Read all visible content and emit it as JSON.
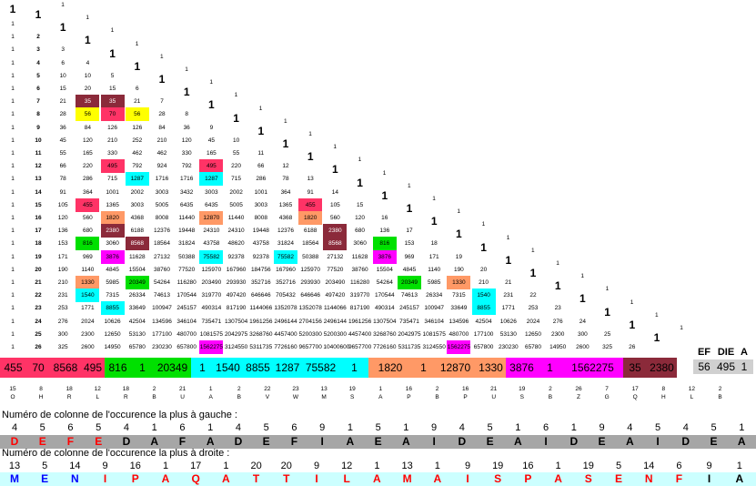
{
  "triangle": {
    "rows": [
      [
        1
      ],
      [
        1,
        1
      ],
      [
        1,
        2,
        1
      ],
      [
        1,
        3,
        3,
        1
      ],
      [
        1,
        4,
        6,
        4,
        1
      ],
      [
        1,
        5,
        10,
        10,
        5,
        1
      ],
      [
        1,
        6,
        15,
        20,
        15,
        6,
        1
      ],
      [
        1,
        7,
        21,
        35,
        35,
        21,
        7,
        1
      ],
      [
        1,
        8,
        28,
        56,
        70,
        56,
        28,
        8,
        1
      ],
      [
        1,
        9,
        36,
        84,
        126,
        126,
        84,
        36,
        9,
        1
      ],
      [
        1,
        10,
        45,
        120,
        210,
        252,
        210,
        120,
        45,
        10,
        1
      ],
      [
        1,
        11,
        55,
        165,
        330,
        462,
        462,
        330,
        165,
        55,
        11,
        1
      ],
      [
        1,
        12,
        66,
        220,
        495,
        792,
        924,
        792,
        495,
        220,
        66,
        12,
        1
      ],
      [
        1,
        13,
        78,
        286,
        715,
        1287,
        1716,
        1716,
        1287,
        715,
        286,
        78,
        13,
        1
      ],
      [
        1,
        14,
        91,
        364,
        1001,
        2002,
        3003,
        3432,
        3003,
        2002,
        1001,
        364,
        91,
        14,
        1
      ],
      [
        1,
        15,
        105,
        455,
        1365,
        3003,
        5005,
        6435,
        6435,
        5005,
        3003,
        1365,
        455,
        105,
        15,
        1
      ],
      [
        1,
        16,
        120,
        560,
        1820,
        4368,
        8008,
        11440,
        12870,
        11440,
        8008,
        4368,
        1820,
        560,
        120,
        16,
        1
      ],
      [
        1,
        17,
        136,
        680,
        2380,
        6188,
        12376,
        19448,
        24310,
        24310,
        19448,
        12376,
        6188,
        2380,
        680,
        136,
        17,
        1
      ],
      [
        1,
        18,
        153,
        816,
        3060,
        8568,
        18564,
        31824,
        43758,
        48620,
        43758,
        31824,
        18564,
        8568,
        3060,
        816,
        153,
        18,
        1
      ],
      [
        1,
        19,
        171,
        969,
        3876,
        11628,
        27132,
        50388,
        75582,
        92378,
        92378,
        75582,
        50388,
        27132,
        11628,
        3876,
        969,
        171,
        19,
        1
      ],
      [
        1,
        20,
        190,
        1140,
        4845,
        15504,
        38760,
        77520,
        125970,
        167960,
        184756,
        167960,
        125970,
        77520,
        38760,
        15504,
        4845,
        1140,
        190,
        20,
        1
      ],
      [
        1,
        21,
        210,
        1330,
        5985,
        20349,
        54264,
        116280,
        203490,
        293930,
        352716,
        352716,
        293930,
        203490,
        116280,
        54264,
        20349,
        5985,
        1330,
        210,
        21,
        1
      ],
      [
        1,
        22,
        231,
        1540,
        7315,
        26334,
        74613,
        170544,
        319770,
        497420,
        646646,
        705432,
        646646,
        497420,
        319770,
        170544,
        74613,
        26334,
        7315,
        1540,
        231,
        22,
        1
      ],
      [
        1,
        23,
        253,
        1771,
        8855,
        33649,
        100947,
        245157,
        490314,
        817190,
        1144066,
        1352078,
        1352078,
        1144066,
        817190,
        490314,
        245157,
        100947,
        33649,
        8855,
        1771,
        253,
        23,
        1
      ],
      [
        1,
        24,
        276,
        2024,
        10626,
        42504,
        134596,
        346104,
        735471,
        1307504,
        1961256,
        2496144,
        2704156,
        2496144,
        1961256,
        1307504,
        735471,
        346104,
        134596,
        42504,
        10626,
        2024,
        276,
        24,
        1
      ],
      [
        1,
        25,
        300,
        2300,
        12650,
        53130,
        177100,
        480700,
        1081575,
        2042975,
        3268760,
        4457400,
        5200300,
        5200300,
        4457400,
        3268760,
        2042975,
        1081575,
        480700,
        177100,
        53130,
        12650,
        2300,
        300,
        25,
        1
      ],
      [
        1,
        26,
        325,
        2600,
        14950,
        65780,
        230230,
        657800,
        1562275,
        3124550,
        5311735,
        7726160,
        9657700,
        10400600,
        9657700,
        7726160,
        5311735,
        3124550,
        1562275,
        657800,
        230230,
        65780,
        14950,
        2600,
        325,
        26,
        1
      ]
    ],
    "highlights": [
      {
        "r": 7,
        "c": 3,
        "color": "#8b2a3a",
        "text": "#ffffff"
      },
      {
        "r": 7,
        "c": 4,
        "color": "#8b2a3a",
        "text": "#ffffff"
      },
      {
        "r": 8,
        "c": 3,
        "color": "#ffff00"
      },
      {
        "r": 8,
        "c": 4,
        "color": "#ff3366"
      },
      {
        "r": 8,
        "c": 5,
        "color": "#ffff00"
      },
      {
        "r": 12,
        "c": 4,
        "color": "#ff3366"
      },
      {
        "r": 12,
        "c": 8,
        "color": "#ff3366"
      },
      {
        "r": 13,
        "c": 5,
        "color": "#00ffff"
      },
      {
        "r": 13,
        "c": 8,
        "color": "#00ffff"
      },
      {
        "r": 15,
        "c": 3,
        "color": "#ff3366"
      },
      {
        "r": 15,
        "c": 12,
        "color": "#ff3366"
      },
      {
        "r": 16,
        "c": 4,
        "color": "#ff9966"
      },
      {
        "r": 16,
        "c": 8,
        "color": "#ff9966"
      },
      {
        "r": 16,
        "c": 12,
        "color": "#ff9966"
      },
      {
        "r": 17,
        "c": 4,
        "color": "#8b2a3a",
        "text": "#ffffff"
      },
      {
        "r": 17,
        "c": 13,
        "color": "#8b2a3a",
        "text": "#ffffff"
      },
      {
        "r": 18,
        "c": 3,
        "color": "#00e000"
      },
      {
        "r": 18,
        "c": 5,
        "color": "#8b2a3a",
        "text": "#ffffff"
      },
      {
        "r": 18,
        "c": 13,
        "color": "#8b2a3a",
        "text": "#ffffff"
      },
      {
        "r": 18,
        "c": 15,
        "color": "#00e000"
      },
      {
        "r": 19,
        "c": 4,
        "color": "#ff00ff"
      },
      {
        "r": 19,
        "c": 8,
        "color": "#00ffff"
      },
      {
        "r": 19,
        "c": 11,
        "color": "#00ffff"
      },
      {
        "r": 19,
        "c": 15,
        "color": "#ff00ff"
      },
      {
        "r": 21,
        "c": 3,
        "color": "#ff9966"
      },
      {
        "r": 21,
        "c": 5,
        "color": "#00e000"
      },
      {
        "r": 21,
        "c": 16,
        "color": "#00e000"
      },
      {
        "r": 21,
        "c": 18,
        "color": "#ff9966"
      },
      {
        "r": 22,
        "c": 3,
        "color": "#00ffff"
      },
      {
        "r": 22,
        "c": 19,
        "color": "#00ffff"
      },
      {
        "r": 23,
        "c": 4,
        "color": "#00ffff"
      },
      {
        "r": 23,
        "c": 19,
        "color": "#00ffff"
      },
      {
        "r": 26,
        "c": 8,
        "color": "#ff00ff"
      },
      {
        "r": 26,
        "c": 18,
        "color": "#ff00ff"
      }
    ]
  },
  "band": {
    "segments": [
      {
        "v": "455",
        "color": "#ff3366"
      },
      {
        "v": "70",
        "color": "#ff3366"
      },
      {
        "v": "8568",
        "color": "#ff3366"
      },
      {
        "v": "495",
        "color": "#ff3366"
      },
      {
        "v": "816",
        "color": "#00e000"
      },
      {
        "v": "1",
        "color": "#00e000"
      },
      {
        "v": "20349",
        "color": "#00e000"
      },
      {
        "v": "1",
        "color": "#00ffff"
      },
      {
        "v": "1540",
        "color": "#00ffff"
      },
      {
        "v": "8855",
        "color": "#00ffff"
      },
      {
        "v": "1287",
        "color": "#00ffff"
      },
      {
        "v": "75582",
        "color": "#00ffff"
      },
      {
        "v": "1",
        "color": "#00ffff"
      },
      {
        "v": "1820",
        "color": "#ff9966"
      },
      {
        "v": "1",
        "color": "#ff9966"
      },
      {
        "v": "12870",
        "color": "#ff9966"
      },
      {
        "v": "1330",
        "color": "#ff9966"
      },
      {
        "v": "3876",
        "color": "#ff00ff"
      },
      {
        "v": "1",
        "color": "#ff00ff"
      },
      {
        "v": "1562275",
        "color": "#ff00ff"
      },
      {
        "v": "35",
        "color": "#8b2a3a"
      },
      {
        "v": "2380",
        "color": "#8b2a3a"
      }
    ],
    "ef_headers": [
      "EF",
      "DIE",
      "A"
    ],
    "ef_values": [
      "56",
      "495",
      "1"
    ]
  },
  "keys": {
    "numbers": [
      "15",
      "8",
      "18",
      "12",
      "18",
      "2",
      "21",
      "1",
      "2",
      "22",
      "23",
      "13",
      "19",
      "1",
      "16",
      "2",
      "16",
      "21",
      "19",
      "2",
      "26",
      "7",
      "17",
      "8",
      "12",
      "2"
    ],
    "letters": [
      "O",
      "H",
      "R",
      "L",
      "R",
      "B",
      "U",
      "A",
      "B",
      "V",
      "W",
      "M",
      "S",
      "A",
      "P",
      "B",
      "P",
      "U",
      "S",
      "B",
      "Z",
      "G",
      "Q",
      "H",
      "L",
      "B"
    ]
  },
  "left": {
    "caption": "Numéro de colonne de l'occurence la plus à gauche :",
    "numbers": [
      "4",
      "5",
      "6",
      "5",
      "4",
      "1",
      "6",
      "1",
      "4",
      "5",
      "6",
      "9",
      "1",
      "5",
      "1",
      "9",
      "4",
      "5",
      "1",
      "6",
      "1",
      "9",
      "4",
      "5",
      "4",
      "5",
      "1"
    ],
    "letters": [
      "D",
      "E",
      "F",
      "E",
      "D",
      "A",
      "F",
      "A",
      "D",
      "E",
      "F",
      "I",
      "A",
      "E",
      "A",
      "I",
      "D",
      "E",
      "A",
      "I",
      "D",
      "E",
      "A",
      "I",
      "D",
      "E",
      "A"
    ]
  },
  "right": {
    "caption": "Numéro de colonne de l'occurence la plus à droite :",
    "numbers": [
      "13",
      "5",
      "14",
      "9",
      "16",
      "1",
      "17",
      "1",
      "20",
      "20",
      "9",
      "12",
      "1",
      "13",
      "1",
      "9",
      "19",
      "16",
      "1",
      "19",
      "5",
      "14",
      "6",
      "9",
      "1"
    ],
    "letters": [
      "M",
      "E",
      "N",
      "I",
      "P",
      "A",
      "Q",
      "A",
      "T",
      "T",
      "I",
      "L",
      "A",
      "M",
      "A",
      "I",
      "S",
      "P",
      "A",
      "S",
      "E",
      "N",
      "F",
      "I",
      "A"
    ]
  },
  "colors": {
    "gray_row": "#a6a6a6",
    "cyan_row": "#ccffff",
    "red_letter": "#ff0000",
    "blue_letter": "#0000ff"
  }
}
